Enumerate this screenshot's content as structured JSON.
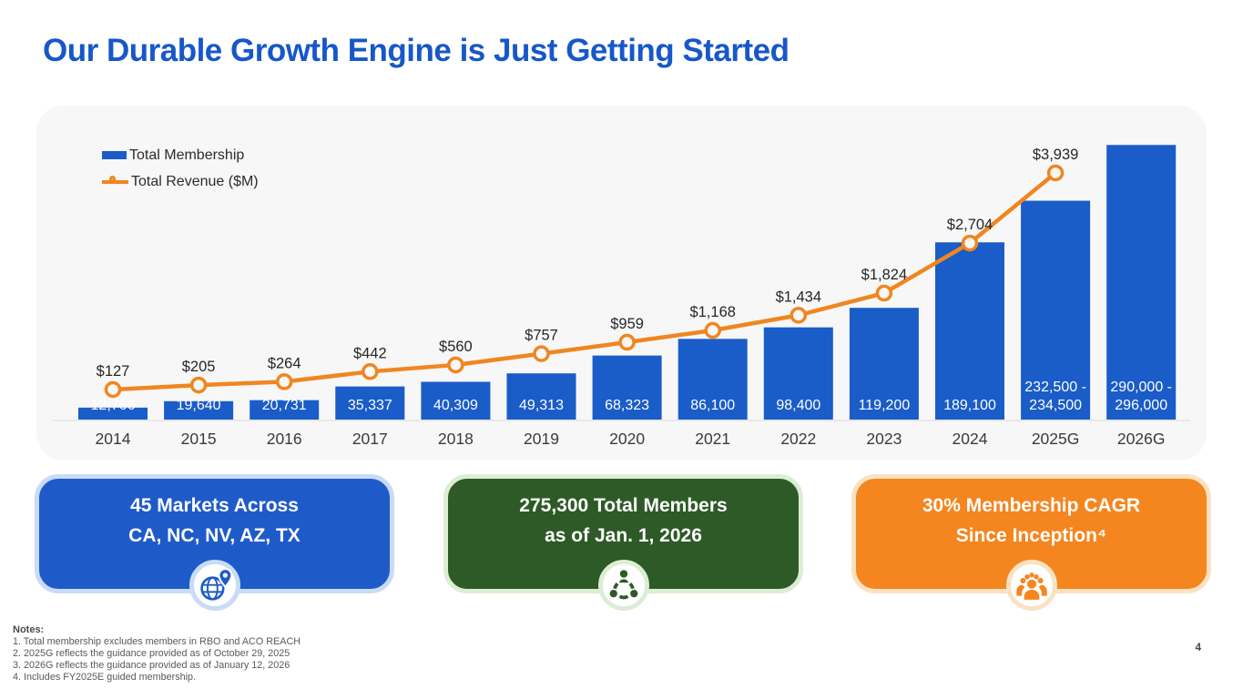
{
  "slide": {
    "title": "Our Durable Growth Engine is Just Getting Started",
    "page_number": "4"
  },
  "chart_data": {
    "type": "combo-bar-line",
    "categories": [
      "2014",
      "2015",
      "2016",
      "2017",
      "2018",
      "2019",
      "2020",
      "2021",
      "2022",
      "2023",
      "2024",
      "2025G",
      "2026G"
    ],
    "series": [
      {
        "name": "Total Membership",
        "type": "bar",
        "values": [
          12766,
          19640,
          20731,
          35337,
          40309,
          49313,
          68323,
          86100,
          98400,
          119200,
          189100,
          233500,
          293000
        ],
        "labels": [
          [
            "12,766"
          ],
          [
            "19,640"
          ],
          [
            "20,731"
          ],
          [
            "35,337"
          ],
          [
            "40,309"
          ],
          [
            "49,313"
          ],
          [
            "68,323"
          ],
          [
            "86,100"
          ],
          [
            "98,400"
          ],
          [
            "119,200"
          ],
          [
            "189,100"
          ],
          [
            "232,500 -",
            "234,500"
          ],
          [
            "290,000 -",
            "296,000"
          ]
        ]
      },
      {
        "name": "Total Revenue ($M)",
        "type": "line",
        "values": [
          127,
          205,
          264,
          442,
          560,
          757,
          959,
          1168,
          1434,
          1824,
          2704,
          3939
        ],
        "labels": [
          "$127",
          "$205",
          "$264",
          "$442",
          "$560",
          "$757",
          "$959",
          "$1,168",
          "$1,434",
          "$1,824",
          "$2,704",
          "$3,939"
        ]
      }
    ],
    "title": "",
    "xlabel": "",
    "ylabel": "",
    "ylim_membership": [
      0,
      335000
    ],
    "grid": false,
    "legend_position": "top-left",
    "colors": {
      "bar": "#1A5CC8",
      "line": "#F0861F",
      "bar_label": "#FFFFFF",
      "tick_label": "#3A3A3A",
      "point_label": "#262626",
      "plot_bg": "#F7F7F8"
    }
  },
  "callouts": [
    {
      "line1": "45 Markets Across",
      "line2": "CA, NC, NV, AZ, TX",
      "bg": "#1E5BC9",
      "border": "#C9DBF6",
      "accent": "#1E5BC9",
      "icon": "globe-pin"
    },
    {
      "line1": "275,300 Total Members",
      "line2": "as of Jan. 1, 2026",
      "bg": "#2D5A26",
      "border": "#DCEDD6",
      "accent": "#2D5A26",
      "icon": "community"
    },
    {
      "line1": "30% Membership CAGR",
      "line2": "Since Inception⁴",
      "bg": "#F5851E",
      "border": "#FBE2C4",
      "accent": "#F5851E",
      "icon": "people-group"
    }
  ],
  "notes": {
    "heading": "Notes:",
    "lines": [
      "1. Total membership excludes members in RBO and ACO REACH",
      "2. 2025G reflects the guidance provided as of October 29, 2025",
      "3. 2026G reflects the guidance provided as of January 12, 2026",
      "4. Includes FY2025E guided membership."
    ]
  }
}
